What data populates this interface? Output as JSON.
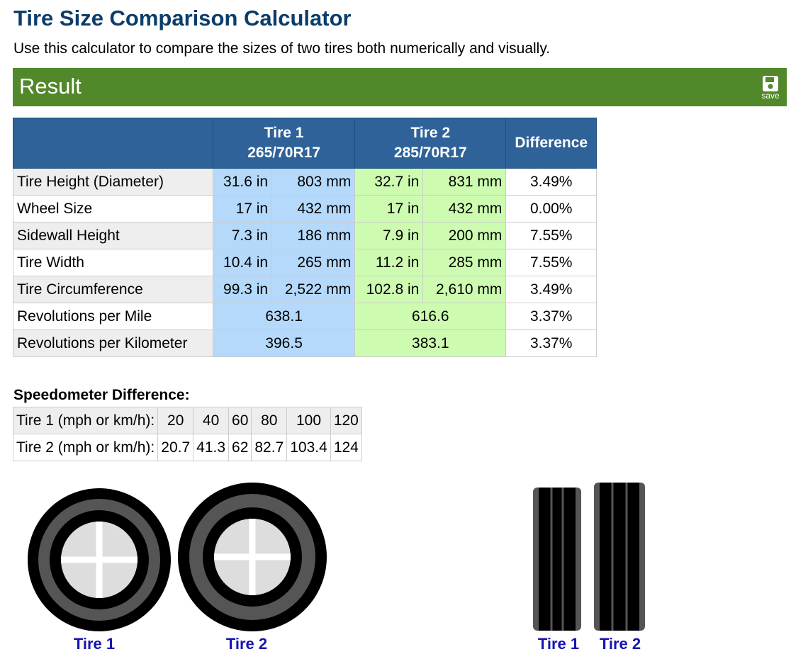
{
  "header": {
    "title": "Tire Size Comparison Calculator",
    "subtitle": "Use this calculator to compare the sizes of two tires both numerically and visually."
  },
  "result": {
    "title": "Result",
    "save": "save"
  },
  "table": {
    "header": {
      "tire1": "Tire 1",
      "tire1_size": "265/70R17",
      "tire2": "Tire 2",
      "tire2_size": "285/70R17",
      "difference": "Difference"
    },
    "rows": [
      [
        "Tire Height (Diameter)",
        "31.6 in",
        "803 mm",
        "32.7 in",
        "831 mm",
        "3.49%"
      ],
      [
        "Wheel Size",
        "17 in",
        "432 mm",
        "17 in",
        "432 mm",
        "0.00%"
      ],
      [
        "Sidewall Height",
        "7.3 in",
        "186 mm",
        "7.9 in",
        "200 mm",
        "7.55%"
      ],
      [
        "Tire Width",
        "10.4 in",
        "265 mm",
        "11.2 in",
        "285 mm",
        "7.55%"
      ],
      [
        "Tire Circumference",
        "99.3 in",
        "2,522 mm",
        "102.8 in",
        "2,610 mm",
        "3.49%"
      ],
      [
        "Revolutions per Mile",
        "638.1",
        "616.6",
        "3.37%"
      ],
      [
        "Revolutions per Kilometer",
        "396.5",
        "383.1",
        "3.37%"
      ]
    ]
  },
  "speedometer": {
    "title": "Speedometer Difference:",
    "rows": [
      [
        "Tire 1 (mph or km/h):",
        "20",
        "40",
        "60",
        "80",
        "100",
        "120"
      ],
      [
        "Tire 2 (mph or km/h):",
        "20.7",
        "41.3",
        "62",
        "82.7",
        "103.4",
        "124"
      ]
    ]
  },
  "visual": {
    "labels": [
      "Tire 1",
      "Tire 2",
      "Tire 1",
      "Tire 2"
    ]
  }
}
